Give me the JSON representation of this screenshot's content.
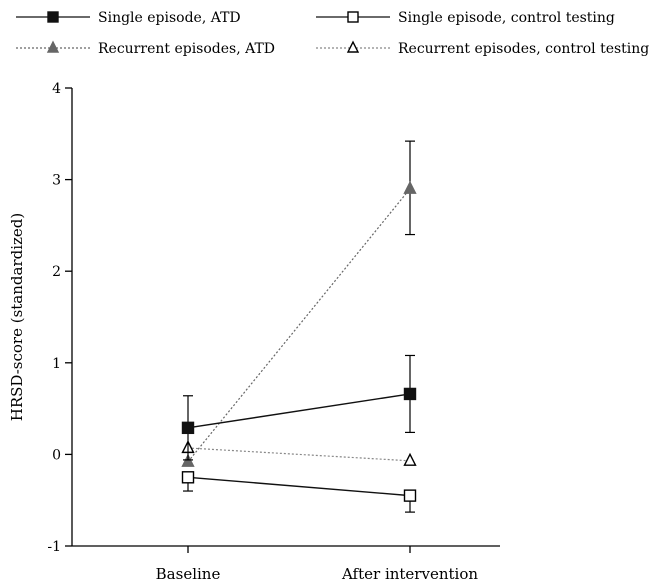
{
  "chart_data": {
    "type": "line",
    "categories": [
      "Baseline",
      "After intervention"
    ],
    "ylabel": "HRSD-score (standardized)",
    "ylim": [
      -1,
      4
    ],
    "yticks": [
      -1,
      0,
      1,
      2,
      3,
      4
    ],
    "legend_position": "top",
    "series": [
      {
        "name": "Single episode, ATD",
        "values": [
          0.29,
          0.66
        ],
        "error_up": [
          0.35,
          0.42
        ],
        "error_down": [
          0.35,
          0.42
        ],
        "marker": "filled-square",
        "line": "solid",
        "color": "#111111"
      },
      {
        "name": "Single episode, control testing",
        "values": [
          -0.25,
          -0.45
        ],
        "error_up": [
          0.0,
          0.0
        ],
        "error_down": [
          0.15,
          0.18
        ],
        "marker": "open-square",
        "line": "solid",
        "color": "#111111"
      },
      {
        "name": "Recurrent episodes, ATD",
        "values": [
          -0.08,
          2.9
        ],
        "error_up": [
          0.0,
          0.52
        ],
        "error_down": [
          0.0,
          0.5
        ],
        "marker": "filled-triangle",
        "line": "dotted",
        "color": "#666666"
      },
      {
        "name": "Recurrent episodes, control testing",
        "values": [
          0.07,
          -0.07
        ],
        "error_up": [
          0.0,
          0.0
        ],
        "error_down": [
          0.0,
          0.0
        ],
        "marker": "open-triangle",
        "line": "dotted",
        "color": "#888888"
      }
    ]
  }
}
